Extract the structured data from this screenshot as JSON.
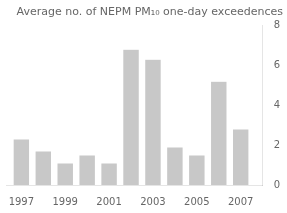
{
  "chart_data": {
    "type": "bar",
    "title": "Average no. of NEPM PM₁₀ one-day exceedences",
    "x": [
      1997,
      1998,
      1999,
      2000,
      2001,
      2002,
      2003,
      2004,
      2005,
      2006,
      2007
    ],
    "values": [
      2.3,
      1.7,
      1.1,
      1.5,
      1.1,
      6.8,
      6.3,
      1.9,
      1.5,
      5.2,
      2.8
    ],
    "color": "#c8c8c8",
    "xlim": [
      1996.3,
      2008.0
    ],
    "xticks": [
      1997,
      1999,
      2001,
      2003,
      2005,
      2007
    ],
    "ylim": [
      0,
      8
    ],
    "yticks": [
      0,
      2,
      4,
      6,
      8
    ],
    "grid": false
  }
}
